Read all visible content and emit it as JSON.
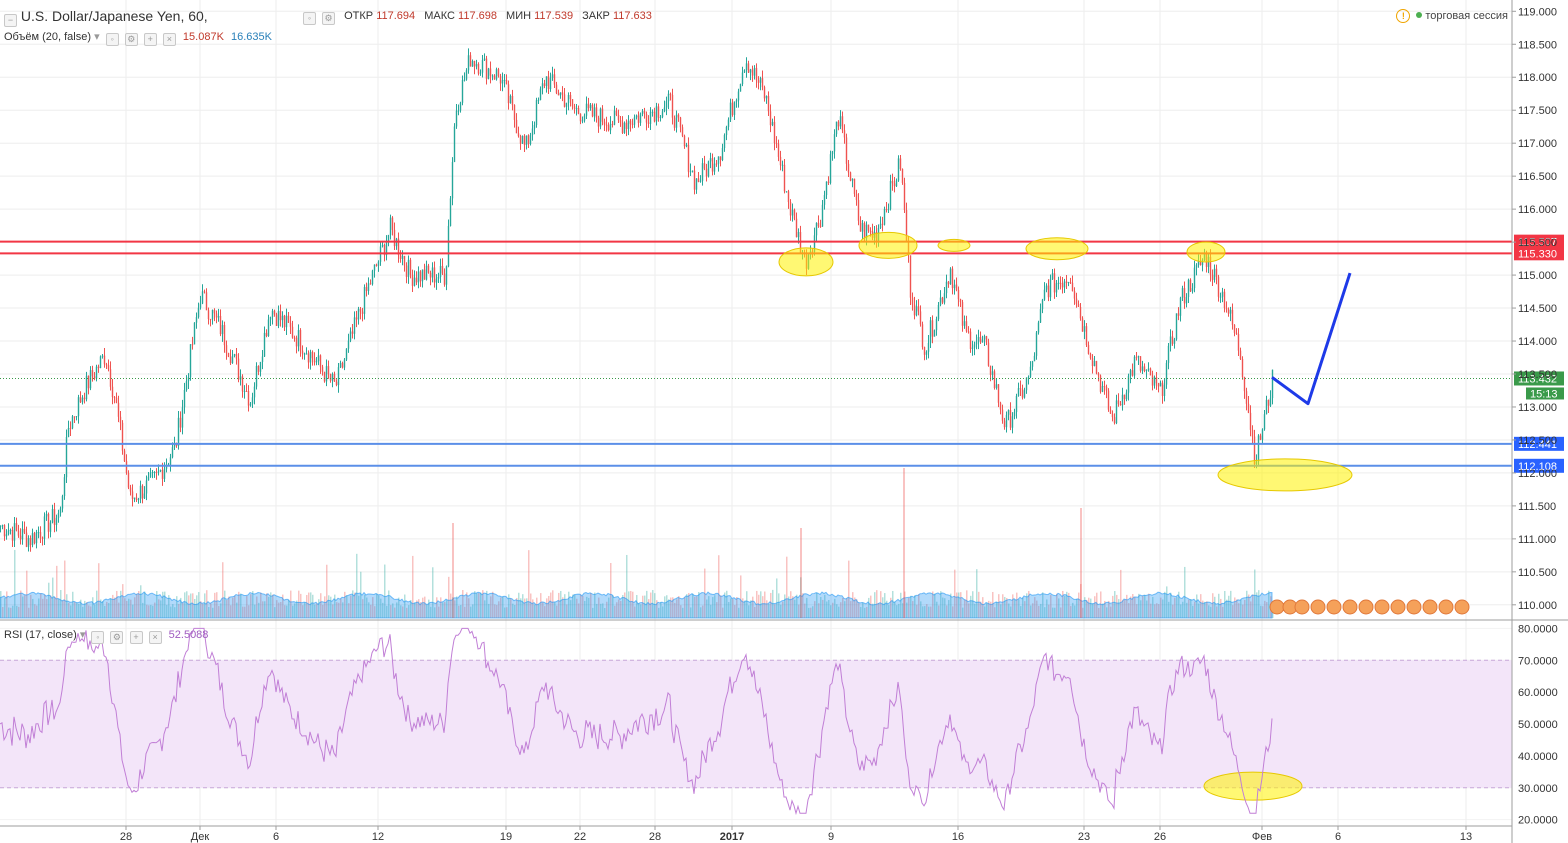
{
  "header": {
    "symbol": "U.S. Dollar/Japanese Yen, 60,",
    "open_label": "ОТКР",
    "open": "117.694",
    "high_label": "МАКС",
    "high": "117.698",
    "low_label": "МИН",
    "low": "117.539",
    "close_label": "ЗАКР",
    "close": "117.633",
    "volume_study": "Объём (20, false)",
    "volume_val1": "15.087K",
    "volume_val2": "16.635K",
    "rsi_study": "RSI (17, close)",
    "rsi_value": "52.5088",
    "session_label": "торговая сессия"
  },
  "colors": {
    "up": "#26a69a",
    "down": "#ef5350",
    "resistance": "#f23645",
    "support": "#2962ff",
    "rsi_line": "#c17fd6",
    "rsi_band": "#f3e5f9",
    "forecast": "#1e3ae8",
    "highlight": "#fff200",
    "current": "#3a9a4a"
  },
  "chart_data": [
    {
      "type": "candlestick",
      "series": [
        {
          "name": "U.S. Dollar/Japanese Yen, 60,"
        }
      ],
      "ylim": [
        109.8,
        119.05
      ],
      "y_ticks": [
        "119.000",
        "118.500",
        "118.000",
        "117.500",
        "117.000",
        "116.500",
        "116.000",
        "115.500",
        "115.000",
        "114.500",
        "114.000",
        "113.500",
        "113.000",
        "112.500",
        "112.000",
        "111.500",
        "111.000",
        "110.500",
        "110.000"
      ],
      "x_tick_labels": [
        "28",
        "Дек",
        "6",
        "12",
        "19",
        "22",
        "28",
        "2017",
        "9",
        "16",
        "23",
        "26",
        "Фев",
        "6",
        "13"
      ],
      "key_points": [
        {
          "t": 0,
          "price": 111.2
        },
        {
          "t": 30,
          "price": 111.0
        },
        {
          "t": 60,
          "price": 111.4
        },
        {
          "t": 68,
          "price": 112.7
        },
        {
          "t": 85,
          "price": 113.3
        },
        {
          "t": 105,
          "price": 113.8
        },
        {
          "t": 115,
          "price": 113.1
        },
        {
          "t": 130,
          "price": 111.6
        },
        {
          "t": 155,
          "price": 111.9
        },
        {
          "t": 175,
          "price": 112.4
        },
        {
          "t": 200,
          "price": 114.7
        },
        {
          "t": 220,
          "price": 114.2
        },
        {
          "t": 250,
          "price": 113.1
        },
        {
          "t": 270,
          "price": 114.5
        },
        {
          "t": 300,
          "price": 114.0
        },
        {
          "t": 335,
          "price": 113.3
        },
        {
          "t": 365,
          "price": 114.7
        },
        {
          "t": 390,
          "price": 115.7
        },
        {
          "t": 410,
          "price": 115.0
        },
        {
          "t": 445,
          "price": 115.0
        },
        {
          "t": 455,
          "price": 117.5
        },
        {
          "t": 470,
          "price": 118.3
        },
        {
          "t": 500,
          "price": 118.0
        },
        {
          "t": 525,
          "price": 116.9
        },
        {
          "t": 545,
          "price": 118.0
        },
        {
          "t": 575,
          "price": 117.5
        },
        {
          "t": 620,
          "price": 117.3
        },
        {
          "t": 670,
          "price": 117.6
        },
        {
          "t": 695,
          "price": 116.4
        },
        {
          "t": 720,
          "price": 116.9
        },
        {
          "t": 745,
          "price": 118.3
        },
        {
          "t": 765,
          "price": 117.7
        },
        {
          "t": 790,
          "price": 116.0
        },
        {
          "t": 805,
          "price": 115.2
        },
        {
          "t": 820,
          "price": 115.9
        },
        {
          "t": 838,
          "price": 117.4
        },
        {
          "t": 860,
          "price": 115.7
        },
        {
          "t": 875,
          "price": 115.6
        },
        {
          "t": 900,
          "price": 116.7
        },
        {
          "t": 910,
          "price": 114.8
        },
        {
          "t": 925,
          "price": 113.9
        },
        {
          "t": 950,
          "price": 115.1
        },
        {
          "t": 965,
          "price": 114.1
        },
        {
          "t": 985,
          "price": 113.9
        },
        {
          "t": 1005,
          "price": 112.7
        },
        {
          "t": 1030,
          "price": 113.5
        },
        {
          "t": 1045,
          "price": 114.8
        },
        {
          "t": 1070,
          "price": 115.0
        },
        {
          "t": 1085,
          "price": 114.1
        },
        {
          "t": 1112,
          "price": 112.8
        },
        {
          "t": 1135,
          "price": 113.7
        },
        {
          "t": 1160,
          "price": 113.2
        },
        {
          "t": 1180,
          "price": 114.6
        },
        {
          "t": 1205,
          "price": 115.3
        },
        {
          "t": 1225,
          "price": 114.6
        },
        {
          "t": 1240,
          "price": 113.8
        },
        {
          "t": 1255,
          "price": 112.2
        },
        {
          "t": 1272,
          "price": 113.4
        }
      ],
      "resistance_levels": [
        "115.507",
        "115.330"
      ],
      "support_levels": [
        "112.441",
        "112.108"
      ],
      "current_price": "113.432",
      "countdown": "15:13",
      "forecast": [
        {
          "t": 1272,
          "price": 113.45
        },
        {
          "t": 1308,
          "price": 113.05
        },
        {
          "t": 1350,
          "price": 115.03
        }
      ]
    },
    {
      "type": "bar",
      "series": [
        {
          "name": "Объём (20, false)"
        }
      ]
    },
    {
      "type": "line",
      "series": [
        {
          "name": "RSI (17, close)"
        }
      ],
      "ylim": [
        18,
        82
      ],
      "y_ticks": [
        "80.0000",
        "70.0000",
        "60.0000",
        "50.0000",
        "40.0000",
        "30.0000",
        "20.0000"
      ],
      "band": [
        30,
        70
      ],
      "last_value": 52.5088
    }
  ]
}
